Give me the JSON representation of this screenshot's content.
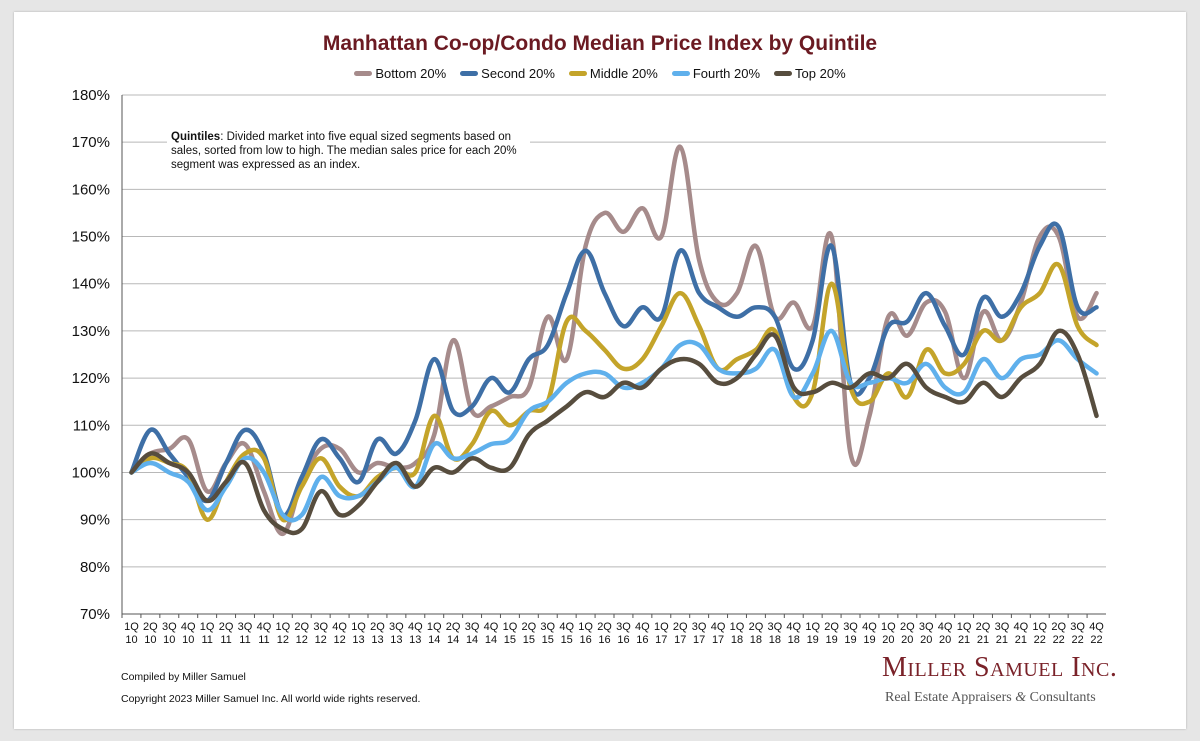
{
  "chart_data": {
    "type": "line",
    "title": "Manhattan Co-op/Condo Median Price Index by Quintile",
    "ylabel": "",
    "xlabel": "",
    "ylim": [
      70,
      180
    ],
    "yticks": [
      "70%",
      "80%",
      "90%",
      "100%",
      "110%",
      "120%",
      "130%",
      "140%",
      "150%",
      "160%",
      "170%",
      "180%"
    ],
    "grid": "horizontal",
    "legend_position": "top",
    "categories": [
      [
        "1Q",
        "10"
      ],
      [
        "2Q",
        "10"
      ],
      [
        "3Q",
        "10"
      ],
      [
        "4Q",
        "10"
      ],
      [
        "1Q",
        "11"
      ],
      [
        "2Q",
        "11"
      ],
      [
        "3Q",
        "11"
      ],
      [
        "4Q",
        "11"
      ],
      [
        "1Q",
        "12"
      ],
      [
        "2Q",
        "12"
      ],
      [
        "3Q",
        "12"
      ],
      [
        "4Q",
        "12"
      ],
      [
        "1Q",
        "13"
      ],
      [
        "2Q",
        "13"
      ],
      [
        "3Q",
        "13"
      ],
      [
        "4Q",
        "13"
      ],
      [
        "1Q",
        "14"
      ],
      [
        "2Q",
        "14"
      ],
      [
        "3Q",
        "14"
      ],
      [
        "4Q",
        "14"
      ],
      [
        "1Q",
        "15"
      ],
      [
        "2Q",
        "15"
      ],
      [
        "3Q",
        "15"
      ],
      [
        "4Q",
        "15"
      ],
      [
        "1Q",
        "16"
      ],
      [
        "2Q",
        "16"
      ],
      [
        "3Q",
        "16"
      ],
      [
        "4Q",
        "16"
      ],
      [
        "1Q",
        "17"
      ],
      [
        "2Q",
        "17"
      ],
      [
        "3Q",
        "17"
      ],
      [
        "4Q",
        "17"
      ],
      [
        "1Q",
        "18"
      ],
      [
        "2Q",
        "18"
      ],
      [
        "3Q",
        "18"
      ],
      [
        "4Q",
        "18"
      ],
      [
        "1Q",
        "19"
      ],
      [
        "2Q",
        "19"
      ],
      [
        "3Q",
        "19"
      ],
      [
        "4Q",
        "19"
      ],
      [
        "1Q",
        "20"
      ],
      [
        "2Q",
        "20"
      ],
      [
        "3Q",
        "20"
      ],
      [
        "4Q",
        "20"
      ],
      [
        "1Q",
        "21"
      ],
      [
        "2Q",
        "21"
      ],
      [
        "3Q",
        "21"
      ],
      [
        "4Q",
        "21"
      ],
      [
        "1Q",
        "22"
      ],
      [
        "2Q",
        "22"
      ],
      [
        "3Q",
        "22"
      ],
      [
        "4Q",
        "22"
      ]
    ],
    "series": [
      {
        "name": "Bottom 20%",
        "color": "#a68b8b",
        "values": [
          100,
          104,
          105,
          107,
          96,
          102,
          106,
          96,
          87,
          98,
          105,
          105,
          100,
          102,
          101,
          102,
          108,
          128,
          113,
          114,
          116,
          118,
          133,
          124,
          148,
          155,
          151,
          156,
          150,
          169,
          145,
          136,
          138,
          148,
          133,
          136,
          131,
          150,
          104,
          112,
          133,
          129,
          136,
          134,
          120,
          134,
          128,
          136,
          150,
          150,
          133,
          138
        ]
      },
      {
        "name": "Second 20%",
        "color": "#3e6fa6",
        "values": [
          100,
          109,
          104,
          99,
          94,
          102,
          109,
          104,
          91,
          99,
          107,
          103,
          98,
          107,
          104,
          111,
          124,
          113,
          114,
          120,
          117,
          124,
          127,
          138,
          147,
          138,
          131,
          135,
          133,
          147,
          138,
          135,
          133,
          135,
          133,
          122,
          128,
          148,
          119,
          120,
          131,
          132,
          138,
          131,
          125,
          137,
          133,
          138,
          148,
          152,
          135,
          135
        ]
      },
      {
        "name": "Middle 20%",
        "color": "#c4a42a",
        "values": [
          100,
          103,
          102,
          100,
          90,
          98,
          104,
          103,
          90,
          97,
          103,
          97,
          95,
          99,
          101,
          100,
          112,
          103,
          106,
          113,
          110,
          113,
          115,
          132,
          130,
          126,
          122,
          124,
          131,
          138,
          131,
          122,
          124,
          126,
          130,
          116,
          117,
          140,
          118,
          115,
          121,
          116,
          126,
          121,
          123,
          130,
          128,
          135,
          138,
          144,
          131,
          127
        ]
      },
      {
        "name": "Fourth 20%",
        "color": "#5fb0ec",
        "values": [
          100,
          102,
          100,
          98,
          92,
          97,
          103,
          100,
          91,
          91,
          99,
          95,
          95,
          98,
          101,
          97,
          106,
          103,
          104,
          106,
          107,
          113,
          115,
          119,
          121,
          121,
          118,
          119,
          122,
          127,
          127,
          122,
          121,
          122,
          126,
          116,
          121,
          130,
          119,
          119,
          120,
          119,
          123,
          118,
          117,
          124,
          120,
          124,
          125,
          128,
          124,
          121
        ]
      },
      {
        "name": "Top 20%",
        "color": "#574d3e",
        "values": [
          100,
          104,
          102,
          100,
          94,
          98,
          102,
          92,
          88,
          88,
          96,
          91,
          93,
          98,
          102,
          97,
          101,
          100,
          103,
          101,
          101,
          108,
          111,
          114,
          117,
          116,
          119,
          118,
          122,
          124,
          123,
          119,
          120,
          125,
          129,
          118,
          117,
          119,
          118,
          121,
          120,
          123,
          118,
          116,
          115,
          119,
          116,
          120,
          123,
          130,
          125,
          112
        ]
      }
    ]
  },
  "note": {
    "bold": "Quintiles",
    "text": ": Divided market into five equal sized segments based on sales, sorted from low to high. The median sales price for each 20% segment was expressed as an index."
  },
  "footer": {
    "compiled": "Compiled by Miller Samuel",
    "copyright": "Copyright 2023 Miller Samuel Inc.  All world wide rights reserved."
  },
  "brand": {
    "name": "Miller Samuel Inc.",
    "tagline_left": "Real Estate Appraisers ",
    "tagline_amp": "&",
    "tagline_right": " Consultants"
  }
}
